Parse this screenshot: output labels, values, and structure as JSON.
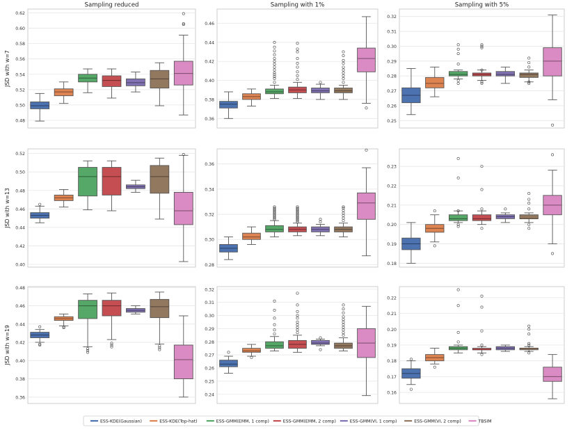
{
  "colors": {
    "ESS-KDE(Gaussian)": "#4c72b0",
    "ESS-KDE(Top-hat)": "#dd8452",
    "ESS-GMM(EMM, 1 comp)": "#55a868",
    "ESS-GMM(EMM, 2 comp)": "#c44e52",
    "ESS-GMM(VI, 1 comp)": "#8172b3",
    "ESS-GMM(VI, 2 comp)": "#937860",
    "TBSIM": "#da8bc3"
  },
  "legend": {
    "entries": [
      "ESS-KDE(Gaussian)",
      "ESS-KDE(Top-hat)",
      "ESS-GMM(EMM, 1 comp)",
      "ESS-GMM(EMM, 2 comp)",
      "ESS-GMM(VI, 1 comp)",
      "ESS-GMM(VI, 2 comp)",
      "TBSIM"
    ]
  },
  "chart_data": [
    {
      "type": "box",
      "title": "Sampling reduced",
      "ylabel": "JSD with w=7",
      "ylim": [
        0.47,
        0.625
      ],
      "ticks": [
        "0.48",
        "0.50",
        "0.52",
        "0.54",
        "0.56",
        "0.58",
        "0.60",
        "0.62"
      ],
      "boxes": [
        {
          "series": "ESS-KDE(Gaussian)",
          "wl": 0.479,
          "q1": 0.495,
          "med": 0.499,
          "q3": 0.504,
          "wh": 0.515,
          "out": []
        },
        {
          "series": "ESS-KDE(Top-hat)",
          "wl": 0.502,
          "q1": 0.512,
          "med": 0.517,
          "q3": 0.521,
          "wh": 0.53,
          "out": []
        },
        {
          "series": "ESS-GMM(EMM, 1 comp)",
          "wl": 0.516,
          "q1": 0.53,
          "med": 0.535,
          "q3": 0.54,
          "wh": 0.547,
          "out": []
        },
        {
          "series": "ESS-GMM(EMM, 2 comp)",
          "wl": 0.509,
          "q1": 0.524,
          "med": 0.532,
          "q3": 0.538,
          "wh": 0.547,
          "out": []
        },
        {
          "series": "ESS-GMM(VI, 1 comp)",
          "wl": 0.517,
          "q1": 0.525,
          "med": 0.529,
          "q3": 0.534,
          "wh": 0.543,
          "out": []
        },
        {
          "series": "ESS-GMM(VI, 2 comp)",
          "wl": 0.499,
          "q1": 0.522,
          "med": 0.534,
          "q3": 0.545,
          "wh": 0.555,
          "out": []
        },
        {
          "series": "TBSIM",
          "wl": 0.487,
          "q1": 0.526,
          "med": 0.541,
          "q3": 0.557,
          "wh": 0.591,
          "out": [
            0.605,
            0.606,
            0.619
          ]
        }
      ]
    },
    {
      "type": "box",
      "title": "Sampling with 1%",
      "ylabel": "",
      "ylim": [
        0.35,
        0.475
      ],
      "ticks": [
        "0.36",
        "0.38",
        "0.40",
        "0.42",
        "0.44",
        "0.46"
      ],
      "boxes": [
        {
          "series": "ESS-KDE(Gaussian)",
          "wl": 0.36,
          "q1": 0.371,
          "med": 0.375,
          "q3": 0.378,
          "wh": 0.388,
          "out": []
        },
        {
          "series": "ESS-KDE(Top-hat)",
          "wl": 0.373,
          "q1": 0.38,
          "med": 0.383,
          "q3": 0.386,
          "wh": 0.391,
          "out": []
        },
        {
          "series": "ESS-GMM(EMM, 1 comp)",
          "wl": 0.381,
          "q1": 0.386,
          "med": 0.388,
          "q3": 0.391,
          "wh": 0.395,
          "out": [
            0.398,
            0.402,
            0.404,
            0.406,
            0.408,
            0.411,
            0.414,
            0.417,
            0.42,
            0.423,
            0.427,
            0.431,
            0.435,
            0.44
          ]
        },
        {
          "series": "ESS-GMM(EMM, 2 comp)",
          "wl": 0.381,
          "q1": 0.387,
          "med": 0.39,
          "q3": 0.393,
          "wh": 0.398,
          "out": [
            0.401,
            0.405,
            0.409,
            0.414,
            0.418,
            0.423,
            0.43,
            0.433,
            0.439
          ]
        },
        {
          "series": "ESS-GMM(VI, 1 comp)",
          "wl": 0.38,
          "q1": 0.387,
          "med": 0.389,
          "q3": 0.392,
          "wh": 0.396,
          "out": [
            0.398
          ]
        },
        {
          "series": "ESS-GMM(VI, 2 comp)",
          "wl": 0.38,
          "q1": 0.387,
          "med": 0.389,
          "q3": 0.392,
          "wh": 0.395,
          "out": [
            0.398,
            0.402,
            0.405,
            0.408,
            0.411,
            0.414,
            0.418,
            0.421,
            0.426,
            0.43
          ]
        },
        {
          "series": "TBSIM",
          "wl": 0.376,
          "q1": 0.409,
          "med": 0.423,
          "q3": 0.434,
          "wh": 0.467,
          "out": [
            0.371
          ]
        }
      ]
    },
    {
      "type": "box",
      "title": "Sampling with 5%",
      "ylabel": "",
      "ylim": [
        0.245,
        0.325
      ],
      "ticks": [
        "0.25",
        "0.26",
        "0.27",
        "0.28",
        "0.29",
        "0.30",
        "0.31",
        "0.32"
      ],
      "boxes": [
        {
          "series": "ESS-KDE(Gaussian)",
          "wl": 0.254,
          "q1": 0.262,
          "med": 0.267,
          "q3": 0.272,
          "wh": 0.285,
          "out": []
        },
        {
          "series": "ESS-KDE(Top-hat)",
          "wl": 0.266,
          "q1": 0.272,
          "med": 0.275,
          "q3": 0.279,
          "wh": 0.286,
          "out": []
        },
        {
          "series": "ESS-GMM(EMM, 1 comp)",
          "wl": 0.278,
          "q1": 0.28,
          "med": 0.281,
          "q3": 0.283,
          "wh": 0.284,
          "out": [
            0.275,
            0.277,
            0.288,
            0.295,
            0.298,
            0.301
          ]
        },
        {
          "series": "ESS-GMM(EMM, 2 comp)",
          "wl": 0.277,
          "q1": 0.28,
          "med": 0.281,
          "q3": 0.282,
          "wh": 0.284,
          "out": [
            0.275,
            0.276,
            0.284,
            0.299,
            0.3,
            0.301
          ]
        },
        {
          "series": "ESS-GMM(VI, 1 comp)",
          "wl": 0.275,
          "q1": 0.28,
          "med": 0.281,
          "q3": 0.283,
          "wh": 0.286,
          "out": []
        },
        {
          "series": "ESS-GMM(VI, 2 comp)",
          "wl": 0.276,
          "q1": 0.279,
          "med": 0.281,
          "q3": 0.282,
          "wh": 0.284,
          "out": [
            0.275,
            0.276,
            0.286,
            0.289,
            0.292
          ]
        },
        {
          "series": "TBSIM",
          "wl": 0.264,
          "q1": 0.28,
          "med": 0.29,
          "q3": 0.299,
          "wh": 0.321,
          "out": [
            0.247
          ]
        }
      ]
    },
    {
      "type": "box",
      "title": "",
      "ylabel": "JSD with w=13",
      "ylim": [
        0.397,
        0.525
      ],
      "ticks": [
        "0.40",
        "0.42",
        "0.44",
        "0.46",
        "0.48",
        "0.50",
        "0.52"
      ],
      "boxes": [
        {
          "series": "ESS-KDE(Gaussian)",
          "wl": 0.445,
          "q1": 0.45,
          "med": 0.453,
          "q3": 0.456,
          "wh": 0.463,
          "out": [
            0.465
          ]
        },
        {
          "series": "ESS-KDE(Top-hat)",
          "wl": 0.462,
          "q1": 0.469,
          "med": 0.472,
          "q3": 0.475,
          "wh": 0.481,
          "out": []
        },
        {
          "series": "ESS-GMM(EMM, 1 comp)",
          "wl": 0.459,
          "q1": 0.474,
          "med": 0.495,
          "q3": 0.505,
          "wh": 0.512,
          "out": []
        },
        {
          "series": "ESS-GMM(EMM, 2 comp)",
          "wl": 0.458,
          "q1": 0.475,
          "med": 0.495,
          "q3": 0.505,
          "wh": 0.512,
          "out": []
        },
        {
          "series": "ESS-GMM(VI, 1 comp)",
          "wl": 0.478,
          "q1": 0.482,
          "med": 0.484,
          "q3": 0.486,
          "wh": 0.491,
          "out": []
        },
        {
          "series": "ESS-GMM(VI, 2 comp)",
          "wl": 0.449,
          "q1": 0.477,
          "med": 0.495,
          "q3": 0.507,
          "wh": 0.515,
          "out": []
        },
        {
          "series": "TBSIM",
          "wl": 0.403,
          "q1": 0.443,
          "med": 0.458,
          "q3": 0.478,
          "wh": 0.518,
          "out": [
            0.519
          ]
        }
      ]
    },
    {
      "type": "box",
      "title": "",
      "ylabel": "",
      "ylim": [
        0.278,
        0.372
      ],
      "ticks": [
        "0.28",
        "0.30",
        "0.32",
        "0.34",
        "0.36"
      ],
      "boxes": [
        {
          "series": "ESS-KDE(Gaussian)",
          "wl": 0.284,
          "q1": 0.29,
          "med": 0.293,
          "q3": 0.296,
          "wh": 0.302,
          "out": []
        },
        {
          "series": "ESS-KDE(Top-hat)",
          "wl": 0.296,
          "q1": 0.3,
          "med": 0.302,
          "q3": 0.305,
          "wh": 0.31,
          "out": []
        },
        {
          "series": "ESS-GMM(EMM, 1 comp)",
          "wl": 0.302,
          "q1": 0.306,
          "med": 0.308,
          "q3": 0.311,
          "wh": 0.315,
          "out": [
            0.316,
            0.317,
            0.318,
            0.319,
            0.32,
            0.321,
            0.322,
            0.323,
            0.324,
            0.325,
            0.326
          ]
        },
        {
          "series": "ESS-GMM(EMM, 2 comp)",
          "wl": 0.303,
          "q1": 0.306,
          "med": 0.308,
          "q3": 0.31,
          "wh": 0.313,
          "out": [
            0.314,
            0.315,
            0.316,
            0.317,
            0.318,
            0.319,
            0.32,
            0.321,
            0.322,
            0.323,
            0.324,
            0.325,
            0.326
          ]
        },
        {
          "series": "ESS-GMM(VI, 1 comp)",
          "wl": 0.303,
          "q1": 0.306,
          "med": 0.308,
          "q3": 0.31,
          "wh": 0.312,
          "out": [
            0.314,
            0.316
          ]
        },
        {
          "series": "ESS-GMM(VI, 2 comp)",
          "wl": 0.302,
          "q1": 0.306,
          "med": 0.308,
          "q3": 0.31,
          "wh": 0.313,
          "out": [
            0.315,
            0.317,
            0.319,
            0.321,
            0.323,
            0.325,
            0.326
          ]
        },
        {
          "series": "TBSIM",
          "wl": 0.287,
          "q1": 0.316,
          "med": 0.329,
          "q3": 0.337,
          "wh": 0.357,
          "out": [
            0.371
          ]
        }
      ]
    },
    {
      "type": "box",
      "title": "",
      "ylabel": "",
      "ylim": [
        0.178,
        0.239
      ],
      "ticks": [
        "0.18",
        "0.19",
        "0.20",
        "0.21",
        "0.22",
        "0.23"
      ],
      "boxes": [
        {
          "series": "ESS-KDE(Gaussian)",
          "wl": 0.18,
          "q1": 0.187,
          "med": 0.19,
          "q3": 0.193,
          "wh": 0.201,
          "out": []
        },
        {
          "series": "ESS-KDE(Top-hat)",
          "wl": 0.191,
          "q1": 0.196,
          "med": 0.198,
          "q3": 0.2,
          "wh": 0.205,
          "out": [
            0.189,
            0.207
          ]
        },
        {
          "series": "ESS-GMM(EMM, 1 comp)",
          "wl": 0.201,
          "q1": 0.202,
          "med": 0.203,
          "q3": 0.205,
          "wh": 0.207,
          "out": [
            0.199,
            0.2,
            0.207,
            0.224,
            0.234
          ]
        },
        {
          "series": "ESS-GMM(EMM, 2 comp)",
          "wl": 0.2,
          "q1": 0.202,
          "med": 0.203,
          "q3": 0.205,
          "wh": 0.207,
          "out": [
            0.198,
            0.208,
            0.218,
            0.23
          ]
        },
        {
          "series": "ESS-GMM(VI, 1 comp)",
          "wl": 0.201,
          "q1": 0.203,
          "med": 0.204,
          "q3": 0.205,
          "wh": 0.206,
          "out": [
            0.208
          ]
        },
        {
          "series": "ESS-GMM(VI, 2 comp)",
          "wl": 0.201,
          "q1": 0.203,
          "med": 0.203,
          "q3": 0.205,
          "wh": 0.206,
          "out": [
            0.198,
            0.2,
            0.208,
            0.211,
            0.213,
            0.216
          ]
        },
        {
          "series": "TBSIM",
          "wl": 0.19,
          "q1": 0.205,
          "med": 0.21,
          "q3": 0.215,
          "wh": 0.228,
          "out": [
            0.185,
            0.236
          ]
        }
      ]
    },
    {
      "type": "box",
      "title": "",
      "ylabel": "JSD with w=19",
      "ylim": [
        0.353,
        0.481
      ],
      "ticks": [
        "0.36",
        "0.38",
        "0.40",
        "0.42",
        "0.44",
        "0.46",
        "0.48"
      ],
      "boxes": [
        {
          "series": "ESS-KDE(Gaussian)",
          "wl": 0.42,
          "q1": 0.425,
          "med": 0.428,
          "q3": 0.431,
          "wh": 0.434,
          "out": [
            0.417,
            0.418,
            0.437
          ]
        },
        {
          "series": "ESS-KDE(Top-hat)",
          "wl": 0.438,
          "q1": 0.444,
          "med": 0.446,
          "q3": 0.448,
          "wh": 0.451,
          "out": [
            0.436,
            0.437
          ]
        },
        {
          "series": "ESS-GMM(EMM, 1 comp)",
          "wl": 0.415,
          "q1": 0.446,
          "med": 0.46,
          "q3": 0.466,
          "wh": 0.473,
          "out": [
            0.409,
            0.411,
            0.413
          ]
        },
        {
          "series": "ESS-GMM(EMM, 2 comp)",
          "wl": 0.423,
          "q1": 0.449,
          "med": 0.46,
          "q3": 0.466,
          "wh": 0.474,
          "out": [
            0.415,
            0.417,
            0.419
          ]
        },
        {
          "series": "ESS-GMM(VI, 1 comp)",
          "wl": 0.451,
          "q1": 0.453,
          "med": 0.455,
          "q3": 0.457,
          "wh": 0.46,
          "out": []
        },
        {
          "series": "ESS-GMM(VI, 2 comp)",
          "wl": 0.418,
          "q1": 0.447,
          "med": 0.459,
          "q3": 0.467,
          "wh": 0.475,
          "out": [
            0.412,
            0.414,
            0.416
          ]
        },
        {
          "series": "TBSIM",
          "wl": 0.36,
          "q1": 0.38,
          "med": 0.401,
          "q3": 0.417,
          "wh": 0.449,
          "out": []
        }
      ]
    },
    {
      "type": "box",
      "title": "",
      "ylabel": "",
      "ylim": [
        0.233,
        0.322
      ],
      "ticks": [
        "0.24",
        "0.25",
        "0.26",
        "0.27",
        "0.28",
        "0.29",
        "0.30",
        "0.31",
        "0.32"
      ],
      "boxes": [
        {
          "series": "ESS-KDE(Gaussian)",
          "wl": 0.256,
          "q1": 0.261,
          "med": 0.263,
          "q3": 0.266,
          "wh": 0.269,
          "out": [
            0.272
          ]
        },
        {
          "series": "ESS-KDE(Top-hat)",
          "wl": 0.269,
          "q1": 0.272,
          "med": 0.273,
          "q3": 0.275,
          "wh": 0.278,
          "out": [
            0.268
          ]
        },
        {
          "series": "ESS-GMM(EMM, 1 comp)",
          "wl": 0.273,
          "q1": 0.275,
          "med": 0.277,
          "q3": 0.28,
          "wh": 0.284,
          "out": [
            0.286,
            0.289,
            0.293,
            0.298,
            0.304,
            0.311
          ]
        },
        {
          "series": "ESS-GMM(EMM, 2 comp)",
          "wl": 0.272,
          "q1": 0.275,
          "med": 0.278,
          "q3": 0.281,
          "wh": 0.285,
          "out": [
            0.287,
            0.289,
            0.291,
            0.293,
            0.295,
            0.298,
            0.3,
            0.303,
            0.308,
            0.317
          ]
        },
        {
          "series": "ESS-GMM(VI, 1 comp)",
          "wl": 0.277,
          "q1": 0.278,
          "med": 0.279,
          "q3": 0.281,
          "wh": 0.282,
          "out": [
            0.274,
            0.283
          ]
        },
        {
          "series": "ESS-GMM(VI, 2 comp)",
          "wl": 0.273,
          "q1": 0.275,
          "med": 0.277,
          "q3": 0.279,
          "wh": 0.283,
          "out": [
            0.285,
            0.287,
            0.289,
            0.291,
            0.293,
            0.295,
            0.297,
            0.299,
            0.302,
            0.305,
            0.308
          ]
        },
        {
          "series": "TBSIM",
          "wl": 0.239,
          "q1": 0.268,
          "med": 0.279,
          "q3": 0.29,
          "wh": 0.307,
          "out": []
        }
      ]
    },
    {
      "type": "box",
      "title": "",
      "ylabel": "",
      "ylim": [
        0.153,
        0.227
      ],
      "ticks": [
        "0.16",
        "0.17",
        "0.18",
        "0.19",
        "0.20",
        "0.21",
        "0.22"
      ],
      "boxes": [
        {
          "series": "ESS-KDE(Gaussian)",
          "wl": 0.165,
          "q1": 0.169,
          "med": 0.172,
          "q3": 0.175,
          "wh": 0.18,
          "out": [
            0.162,
            0.181
          ]
        },
        {
          "series": "ESS-KDE(Top-hat)",
          "wl": 0.178,
          "q1": 0.18,
          "med": 0.182,
          "q3": 0.184,
          "wh": 0.188,
          "out": [
            0.176
          ]
        },
        {
          "series": "ESS-GMM(EMM, 1 comp)",
          "wl": 0.185,
          "q1": 0.187,
          "med": 0.188,
          "q3": 0.189,
          "wh": 0.19,
          "out": [
            0.192,
            0.198,
            0.215,
            0.225
          ]
        },
        {
          "series": "ESS-GMM(EMM, 2 comp)",
          "wl": 0.185,
          "q1": 0.187,
          "med": 0.187,
          "q3": 0.188,
          "wh": 0.189,
          "out": [
            0.184,
            0.19,
            0.199,
            0.214,
            0.221
          ]
        },
        {
          "series": "ESS-GMM(VI, 1 comp)",
          "wl": 0.186,
          "q1": 0.187,
          "med": 0.188,
          "q3": 0.189,
          "wh": 0.19,
          "out": []
        },
        {
          "series": "ESS-GMM(VI, 2 comp)",
          "wl": 0.186,
          "q1": 0.187,
          "med": 0.188,
          "q3": 0.188,
          "wh": 0.189,
          "out": [
            0.185,
            0.19,
            0.191,
            0.197,
            0.2,
            0.202
          ]
        },
        {
          "series": "TBSIM",
          "wl": 0.156,
          "q1": 0.167,
          "med": 0.17,
          "q3": 0.176,
          "wh": 0.184,
          "out": []
        }
      ]
    }
  ]
}
